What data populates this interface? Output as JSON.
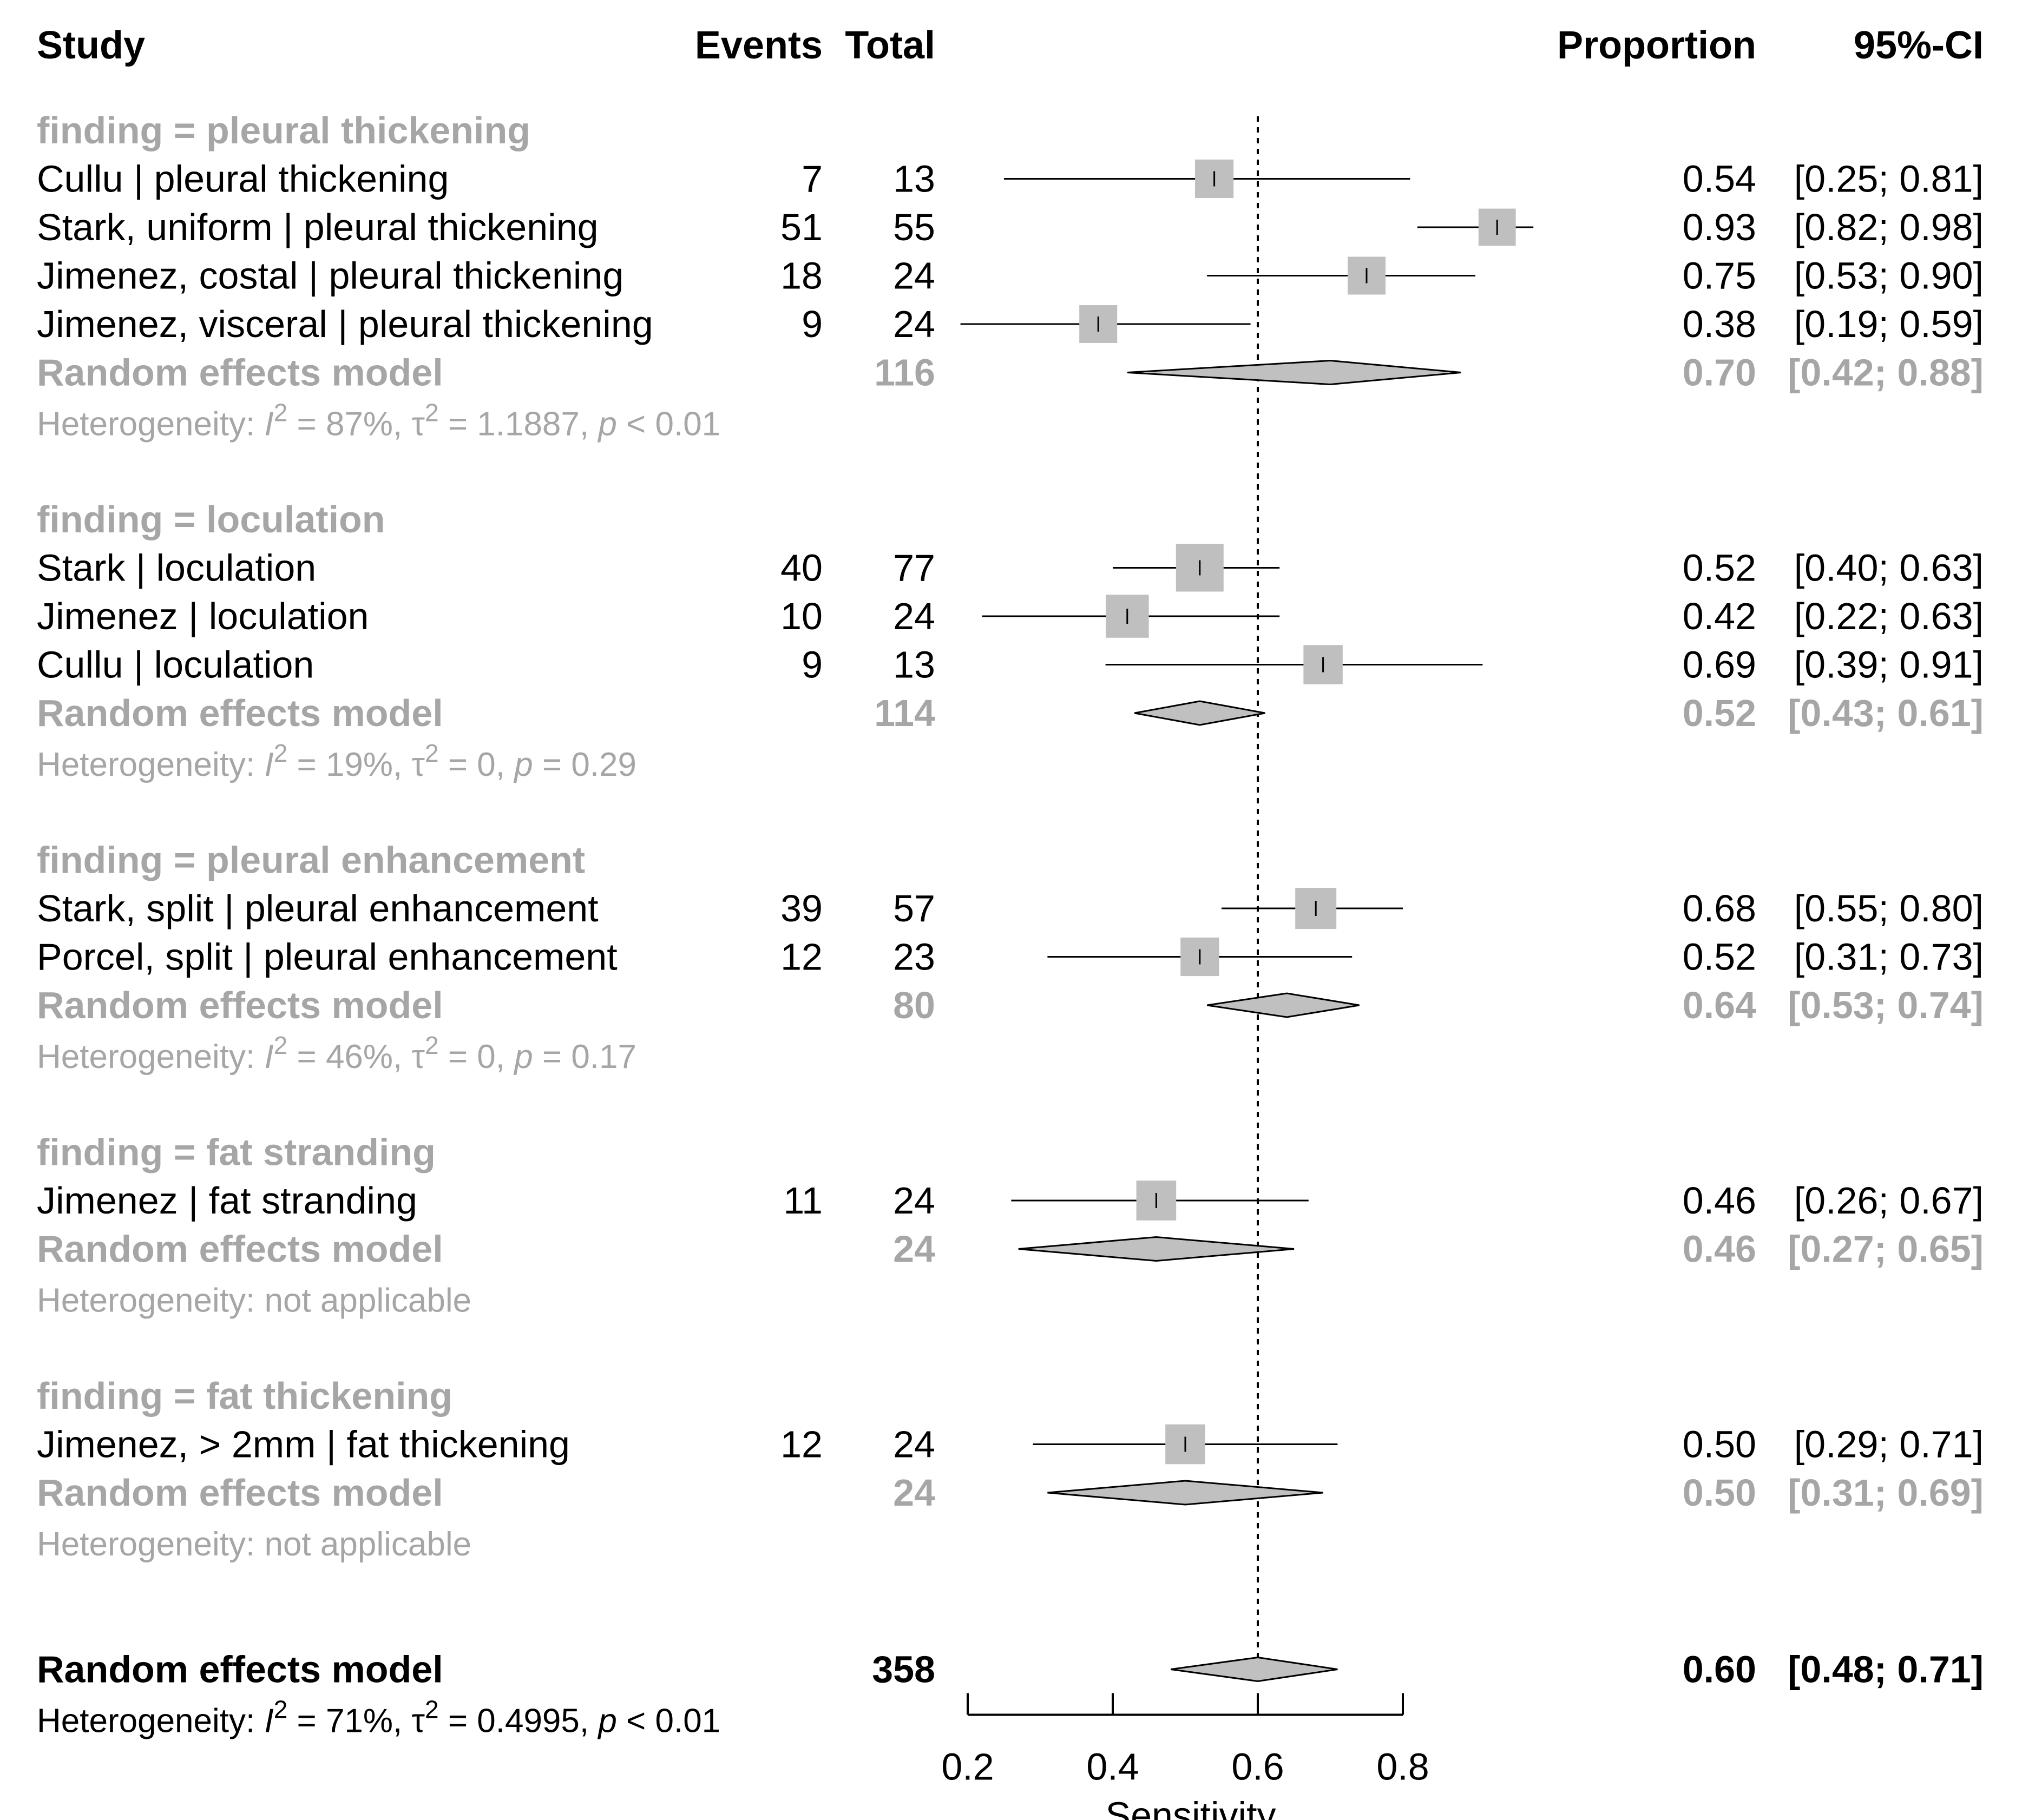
{
  "headers": {
    "study": "Study",
    "events": "Events",
    "total": "Total",
    "proportion": "Proportion",
    "ci": "95%-CI"
  },
  "colors": {
    "group_text": "#a6a6a6",
    "text": "#000000",
    "square": "#bfbfbf",
    "diamond": "#c0c0c0"
  },
  "chart_data": {
    "type": "forest",
    "xlabel": "Sensitivity",
    "xlim": [
      0.2,
      0.8
    ],
    "xticks": [
      "0.2",
      "0.4",
      "0.6",
      "0.8"
    ],
    "reference_line": 0.6,
    "groups": [
      {
        "label": "finding = pleural thickening",
        "studies": [
          {
            "study": "Cullu | pleural thickening",
            "events": "7",
            "total": "13",
            "prop": "0.54",
            "ci": "[0.25; 0.81]",
            "est": 0.54,
            "lo": 0.25,
            "hi": 0.81,
            "weight": 0.26
          },
          {
            "study": "Stark, uniform | pleural thickening",
            "events": "51",
            "total": "55",
            "prop": "0.93",
            "ci": "[0.82; 0.98]",
            "est": 0.93,
            "lo": 0.82,
            "hi": 0.98,
            "weight": 0.24
          },
          {
            "study": "Jimenez, costal | pleural thickening",
            "events": "18",
            "total": "24",
            "prop": "0.75",
            "ci": "[0.53; 0.90]",
            "est": 0.75,
            "lo": 0.53,
            "hi": 0.9,
            "weight": 0.25
          },
          {
            "study": "Jimenez, visceral | pleural thickening",
            "events": "9",
            "total": "24",
            "prop": "0.38",
            "ci": "[0.19; 0.59]",
            "est": 0.38,
            "lo": 0.19,
            "hi": 0.59,
            "weight": 0.25
          }
        ],
        "pooled": {
          "label": "Random effects model",
          "total": "116",
          "prop": "0.70",
          "ci": "[0.42; 0.88]",
          "est": 0.7,
          "lo": 0.42,
          "hi": 0.88
        },
        "heterogeneity": {
          "prefix": "Heterogeneity: ",
          "i2": "87%",
          "tau2": "1.1887",
          "p": "< 0.01"
        }
      },
      {
        "label": "finding = loculation",
        "studies": [
          {
            "study": "Stark | loculation",
            "events": "40",
            "total": "77",
            "prop": "0.52",
            "ci": "[0.40; 0.63]",
            "est": 0.52,
            "lo": 0.4,
            "hi": 0.63,
            "weight": 0.4
          },
          {
            "study": "Jimenez | loculation",
            "events": "10",
            "total": "24",
            "prop": "0.42",
            "ci": "[0.22; 0.63]",
            "est": 0.42,
            "lo": 0.22,
            "hi": 0.63,
            "weight": 0.33
          },
          {
            "study": "Cullu | loculation",
            "events": "9",
            "total": "13",
            "prop": "0.69",
            "ci": "[0.39; 0.91]",
            "est": 0.69,
            "lo": 0.39,
            "hi": 0.91,
            "weight": 0.27
          }
        ],
        "pooled": {
          "label": "Random effects model",
          "total": "114",
          "prop": "0.52",
          "ci": "[0.43; 0.61]",
          "est": 0.52,
          "lo": 0.43,
          "hi": 0.61
        },
        "heterogeneity": {
          "prefix": "Heterogeneity: ",
          "i2": "19%",
          "tau2": "0",
          "p": "= 0.29"
        }
      },
      {
        "label": "finding = pleural enhancement",
        "studies": [
          {
            "study": "Stark, split | pleural enhancement",
            "events": "39",
            "total": "57",
            "prop": "0.68",
            "ci": "[0.55; 0.80]",
            "est": 0.68,
            "lo": 0.55,
            "hi": 0.8,
            "weight": 0.3
          },
          {
            "study": "Porcel, split | pleural enhancement",
            "events": "12",
            "total": "23",
            "prop": "0.52",
            "ci": "[0.31; 0.73]",
            "est": 0.52,
            "lo": 0.31,
            "hi": 0.73,
            "weight": 0.26
          }
        ],
        "pooled": {
          "label": "Random effects model",
          "total": "80",
          "prop": "0.64",
          "ci": "[0.53; 0.74]",
          "est": 0.64,
          "lo": 0.53,
          "hi": 0.74
        },
        "heterogeneity": {
          "prefix": "Heterogeneity: ",
          "i2": "46%",
          "tau2": "0",
          "p": "= 0.17"
        }
      },
      {
        "label": "finding = fat stranding",
        "studies": [
          {
            "study": "Jimenez | fat stranding",
            "events": "11",
            "total": "24",
            "prop": "0.46",
            "ci": "[0.26; 0.67]",
            "est": 0.46,
            "lo": 0.26,
            "hi": 0.67,
            "weight": 0.28
          }
        ],
        "pooled": {
          "label": "Random effects model",
          "total": "24",
          "prop": "0.46",
          "ci": "[0.27; 0.65]",
          "est": 0.46,
          "lo": 0.27,
          "hi": 0.65
        },
        "heterogeneity": {
          "prefix": "Heterogeneity: ",
          "text": "not applicable"
        }
      },
      {
        "label": "finding = fat thickening",
        "studies": [
          {
            "study": "Jimenez, > 2mm | fat thickening",
            "events": "12",
            "total": "24",
            "prop": "0.50",
            "ci": "[0.29; 0.71]",
            "est": 0.5,
            "lo": 0.29,
            "hi": 0.71,
            "weight": 0.28
          }
        ],
        "pooled": {
          "label": "Random effects model",
          "total": "24",
          "prop": "0.50",
          "ci": "[0.31; 0.69]",
          "est": 0.5,
          "lo": 0.31,
          "hi": 0.69
        },
        "heterogeneity": {
          "prefix": "Heterogeneity: ",
          "text": "not applicable"
        }
      }
    ],
    "overall": {
      "label": "Random effects model",
      "total": "358",
      "prop": "0.60",
      "ci": "[0.48; 0.71]",
      "est": 0.6,
      "lo": 0.48,
      "hi": 0.71,
      "heterogeneity": {
        "prefix": "Heterogeneity: ",
        "i2": "71%",
        "tau2": "0.4995",
        "p": "< 0.01"
      }
    }
  }
}
